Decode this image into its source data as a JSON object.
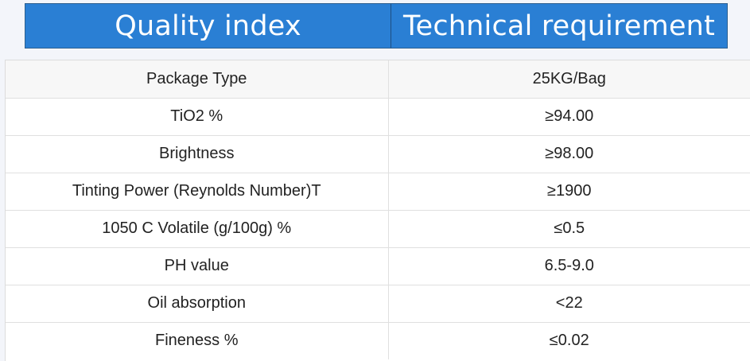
{
  "header": {
    "col1": "Quality index",
    "col2": "Technical requirement"
  },
  "rows": [
    {
      "index": "Package Type",
      "requirement": "25KG/Bag"
    },
    {
      "index": "TiO2 %",
      "requirement": "≥94.00"
    },
    {
      "index": "Brightness",
      "requirement": "≥98.00"
    },
    {
      "index": "Tinting Power (Reynolds Number)T",
      "requirement": "≥1900"
    },
    {
      "index": "1050 C Volatile (g/100g) %",
      "requirement": "≤0.5"
    },
    {
      "index": "PH value",
      "requirement": "6.5-9.0"
    },
    {
      "index": "Oil absorption",
      "requirement": "<22"
    },
    {
      "index": "Fineness %",
      "requirement": "≤0.02"
    }
  ],
  "colors": {
    "header_bg": "#2a7fd4",
    "header_text": "#ffffff",
    "page_bg": "#f3f5fa"
  }
}
